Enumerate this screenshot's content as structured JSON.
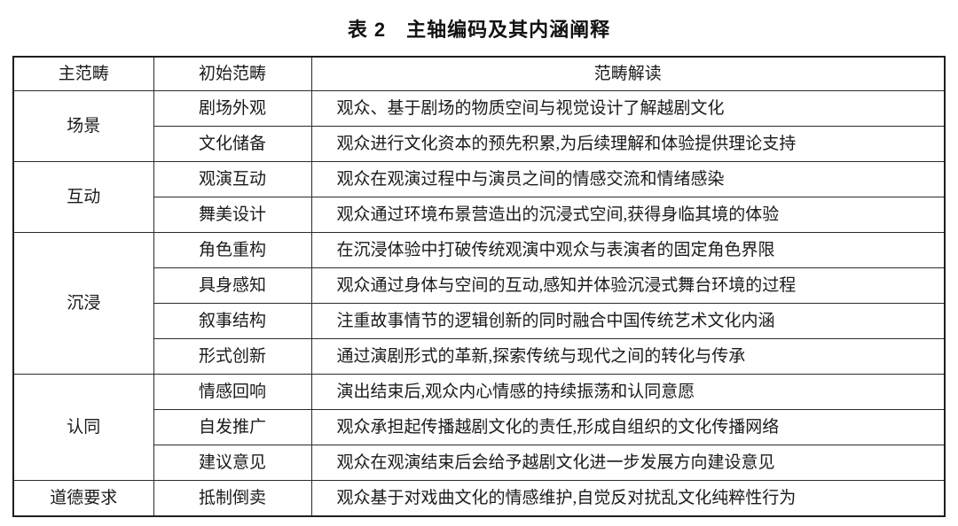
{
  "page": {
    "title": "表 2　主轴编码及其内涵阐释"
  },
  "colors": {
    "background": "#ffffff",
    "text": "#1a1a1a",
    "border_outer": "#1f1f1f",
    "border_inner": "#2b2b2b"
  },
  "table": {
    "columns": [
      "主范畴",
      "初始范畴",
      "范畴解读"
    ],
    "groups": [
      {
        "main_category": "场景",
        "rows": [
          {
            "initial_category": "剧场外观",
            "interpretation": "观众、基于剧场的物质空间与视觉设计了解越剧文化"
          },
          {
            "initial_category": "文化储备",
            "interpretation": "观众进行文化资本的预先积累,为后续理解和体验提供理论支持"
          }
        ]
      },
      {
        "main_category": "互动",
        "rows": [
          {
            "initial_category": "观演互动",
            "interpretation": "观众在观演过程中与演员之间的情感交流和情绪感染"
          },
          {
            "initial_category": "舞美设计",
            "interpretation": "观众通过环境布景营造出的沉浸式空间,获得身临其境的体验"
          }
        ]
      },
      {
        "main_category": "沉浸",
        "rows": [
          {
            "initial_category": "角色重构",
            "interpretation": "在沉浸体验中打破传统观演中观众与表演者的固定角色界限"
          },
          {
            "initial_category": "具身感知",
            "interpretation": "观众通过身体与空间的互动,感知并体验沉浸式舞台环境的过程"
          },
          {
            "initial_category": "叙事结构",
            "interpretation": "注重故事情节的逻辑创新的同时融合中国传统艺术文化内涵"
          },
          {
            "initial_category": "形式创新",
            "interpretation": "通过演剧形式的革新,探索传统与现代之间的转化与传承"
          }
        ]
      },
      {
        "main_category": "认同",
        "rows": [
          {
            "initial_category": "情感回响",
            "interpretation": "演出结束后,观众内心情感的持续振荡和认同意愿"
          },
          {
            "initial_category": "自发推广",
            "interpretation": "观众承担起传播越剧文化的责任,形成自组织的文化传播网络"
          },
          {
            "initial_category": "建议意见",
            "interpretation": "观众在观演结束后会给予越剧文化进一步发展方向建设意见"
          }
        ]
      },
      {
        "main_category": "道德要求",
        "rows": [
          {
            "initial_category": "抵制倒卖",
            "interpretation": "观众基于对戏曲文化的情感维护,自觉反对扰乱文化纯粹性行为"
          }
        ]
      }
    ]
  }
}
